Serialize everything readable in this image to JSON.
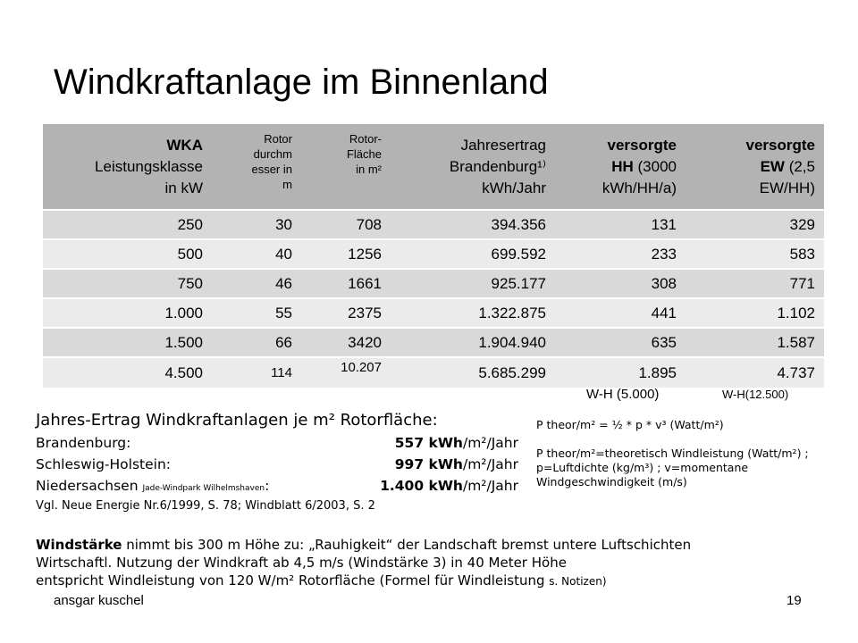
{
  "title": "Windkraftanlage im Binnenland",
  "table": {
    "headers": [
      {
        "lines": [
          "WKA",
          "Leistungsklasse",
          "in kW"
        ]
      },
      {
        "lines": [
          "Rotor",
          "durchm",
          "esser in",
          "m"
        ]
      },
      {
        "lines": [
          "Rotor-",
          "Fläche",
          "in m²"
        ]
      },
      {
        "lines": [
          "Jahresertrag",
          "Brandenburg¹⁾",
          "kWh/Jahr"
        ]
      },
      {
        "lines": [
          "versorgte",
          "HH (3000",
          "kWh/HH/a)"
        ]
      },
      {
        "lines": [
          "versorgte",
          "EW (2,5",
          "EW/HH)"
        ]
      }
    ],
    "rows": [
      [
        "250",
        "30",
        "708",
        "394.356",
        "131",
        "329"
      ],
      [
        "500",
        "40",
        "1256",
        "699.592",
        "233",
        "583"
      ],
      [
        "750",
        "46",
        "1661",
        "925.177",
        "308",
        "771"
      ],
      [
        "1.000",
        "55",
        "2375",
        "1.322.875",
        "441",
        "1.102"
      ],
      [
        "1.500",
        "66",
        "3420",
        "1.904.940",
        "635",
        "1.587"
      ],
      [
        "4.500",
        "114",
        "10.207",
        "5.685.299",
        "1.895",
        "4.737"
      ]
    ],
    "foot_hh": "W-H (5.000)",
    "foot_ew": "W-H(12.500)"
  },
  "ertrag": {
    "heading": "Jahres-Ertrag Windkraftanlagen je m² Rotorfläche:",
    "rows": [
      {
        "label": "Brandenburg:",
        "value": "557 kWh",
        "unit": "/m²/Jahr"
      },
      {
        "label": "Schleswig-Holstein:",
        "value": "997 kWh",
        "unit": "/m²/Jahr"
      },
      {
        "label": "Niedersachsen",
        "label_small": "Jade-Windpark Wilhelmshaven",
        "label_colon": ":",
        "value": "1.400 kWh",
        "unit": "/m²/Jahr"
      }
    ],
    "reference": "Vgl. Neue Energie Nr.6/1999, S. 78; Windblatt 6/2003, S. 2"
  },
  "formula": {
    "line1": "P theor/m² = ½ * p * v³ (Watt/m²)",
    "line2": "P theor/m²=theoretisch Windleistung (Watt/m²) ; p=Luftdichte (kg/m³) ; v=momentane Windgeschwindigkeit (m/s)"
  },
  "bottom": {
    "line1_bold": "Windstärke",
    "line1_rest": " nimmt bis 300 m Höhe zu: „Rauhigkeit“ der Landschaft bremst untere Luftschichten",
    "line2": "Wirtschaftl. Nutzung der Windkraft ab 4,5 m/s (Windstärke 3) in 40 Meter Höhe",
    "line3": "entspricht Windleistung von 120 W/m² Rotorfläche (Formel für Windleistung ",
    "line3_small": "s. Notizen)"
  },
  "footer": {
    "author": "ansgar kuschel",
    "page": "19"
  }
}
